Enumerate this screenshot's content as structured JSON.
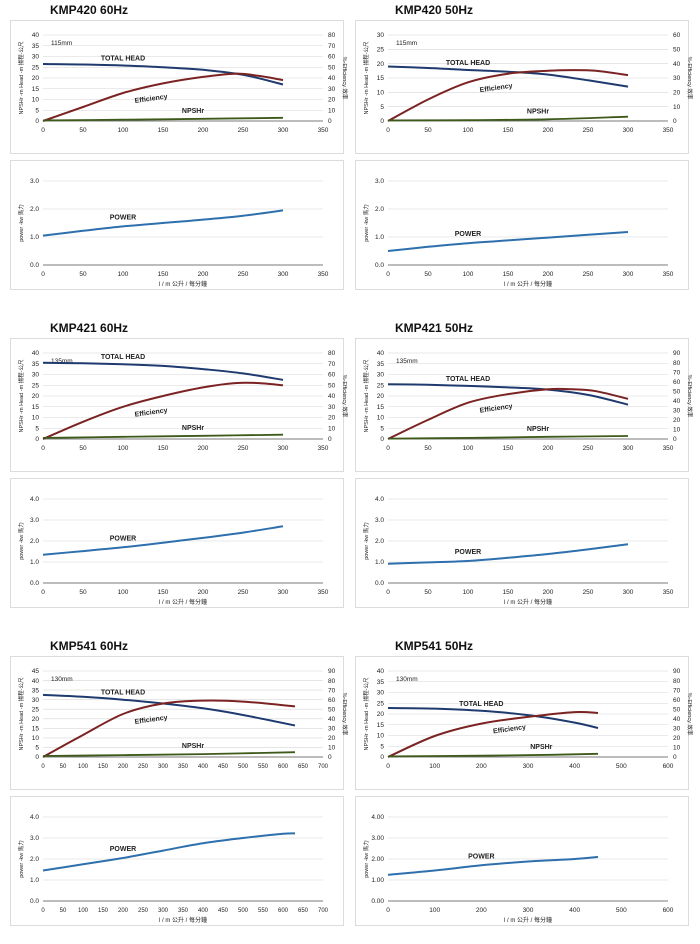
{
  "axis_text": {
    "head_ylabel": "NPSHr -m   Head -m 揚程-公尺",
    "eff_ylabel": "%-Efficiency 效率",
    "power_ylabel": "power -kw 馬力",
    "xlabel": "l / m   公升 / 每分鐘"
  },
  "colors": {
    "head": "#1f3a6e",
    "efficiency": "#7b2323",
    "npshr": "#3d5a1b",
    "power": "#2e6fad"
  },
  "charts": [
    {
      "title": "KMP420  60Hz",
      "head": {
        "ylim": [
          0,
          40
        ],
        "yticks": [
          0,
          5,
          10,
          15,
          20,
          25,
          30,
          35,
          40
        ],
        "y2lim": [
          0,
          80
        ],
        "y2ticks": [
          0,
          10,
          20,
          30,
          40,
          50,
          60,
          70,
          80
        ],
        "xlim": [
          0,
          350
        ],
        "xticks": [
          0,
          50,
          100,
          150,
          200,
          250,
          300,
          350
        ],
        "annotation": "115mm",
        "labels": {
          "head": "TOTAL HEAD",
          "eff": "Efficiency",
          "npshr": "NPSHr"
        },
        "series": {
          "head": [
            [
              0,
              26.5
            ],
            [
              50,
              26.3
            ],
            [
              100,
              25.8
            ],
            [
              150,
              25
            ],
            [
              200,
              23.8
            ],
            [
              250,
              21.5
            ],
            [
              300,
              17
            ]
          ],
          "efficiency": [
            [
              0,
              0
            ],
            [
              50,
              13
            ],
            [
              100,
              26
            ],
            [
              150,
              35
            ],
            [
              200,
              41
            ],
            [
              240,
              44
            ],
            [
              270,
              42
            ],
            [
              300,
              38
            ]
          ],
          "npshr": [
            [
              0,
              0.3
            ],
            [
              100,
              0.6
            ],
            [
              200,
              1
            ],
            [
              300,
              1.5
            ]
          ]
        }
      },
      "power": {
        "ylim": [
          0,
          3
        ],
        "yticks": [
          "0.0",
          "1.0",
          "2.0",
          "3.0"
        ],
        "xlim": [
          0,
          350
        ],
        "xticks": [
          0,
          50,
          100,
          150,
          200,
          250,
          300,
          350
        ],
        "label": "POWER",
        "series": [
          [
            0,
            1.05
          ],
          [
            50,
            1.22
          ],
          [
            100,
            1.38
          ],
          [
            150,
            1.5
          ],
          [
            200,
            1.62
          ],
          [
            250,
            1.76
          ],
          [
            300,
            1.95
          ]
        ]
      }
    },
    {
      "title": "KMP420  50Hz",
      "head": {
        "ylim": [
          0,
          30
        ],
        "yticks": [
          0,
          5,
          10,
          15,
          20,
          25,
          30
        ],
        "y2lim": [
          0,
          60
        ],
        "y2ticks": [
          0,
          10,
          20,
          30,
          40,
          50,
          60
        ],
        "xlim": [
          0,
          350
        ],
        "xticks": [
          0,
          50,
          100,
          150,
          200,
          250,
          300,
          350
        ],
        "annotation": "115mm",
        "labels": {
          "head": "TOTAL HEAD",
          "eff": "Efficiency",
          "npshr": "NPSHr"
        },
        "series": {
          "head": [
            [
              0,
              19
            ],
            [
              50,
              18.5
            ],
            [
              100,
              17.8
            ],
            [
              150,
              17.2
            ],
            [
              200,
              16.2
            ],
            [
              250,
              14.2
            ],
            [
              300,
              12
            ]
          ],
          "efficiency": [
            [
              0,
              0
            ],
            [
              50,
              15
            ],
            [
              100,
              27
            ],
            [
              150,
              33
            ],
            [
              200,
              35
            ],
            [
              230,
              35.5
            ],
            [
              260,
              35
            ],
            [
              300,
              32
            ]
          ],
          "npshr": [
            [
              0,
              0.2
            ],
            [
              100,
              0.3
            ],
            [
              200,
              0.6
            ],
            [
              300,
              1.5
            ]
          ]
        }
      },
      "power": {
        "ylim": [
          0,
          3
        ],
        "yticks": [
          "0.0",
          "1.0",
          "2.0",
          "3.0"
        ],
        "xlim": [
          0,
          350
        ],
        "xticks": [
          0,
          50,
          100,
          150,
          200,
          250,
          300,
          350
        ],
        "label": "POWER",
        "series": [
          [
            0,
            0.5
          ],
          [
            50,
            0.65
          ],
          [
            100,
            0.78
          ],
          [
            150,
            0.88
          ],
          [
            200,
            0.98
          ],
          [
            250,
            1.08
          ],
          [
            300,
            1.18
          ]
        ]
      }
    },
    {
      "title": "KMP421  60Hz",
      "head": {
        "ylim": [
          0,
          40
        ],
        "yticks": [
          0,
          5,
          10,
          15,
          20,
          25,
          30,
          35,
          40
        ],
        "y2lim": [
          0,
          80
        ],
        "y2ticks": [
          0,
          10,
          20,
          30,
          40,
          50,
          60,
          70,
          80
        ],
        "xlim": [
          0,
          350
        ],
        "xticks": [
          0,
          50,
          100,
          150,
          200,
          250,
          300,
          350
        ],
        "annotation": "135mm",
        "labels": {
          "head": "TOTAL HEAD",
          "eff": "Efficiency",
          "npshr": "NPSHr"
        },
        "series": {
          "head": [
            [
              0,
              35.5
            ],
            [
              50,
              35.2
            ],
            [
              100,
              34.8
            ],
            [
              150,
              34
            ],
            [
              200,
              32.5
            ],
            [
              250,
              30.5
            ],
            [
              300,
              27.5
            ]
          ],
          "efficiency": [
            [
              0,
              0
            ],
            [
              50,
              16
            ],
            [
              100,
              30
            ],
            [
              150,
              40
            ],
            [
              200,
              48
            ],
            [
              240,
              52
            ],
            [
              270,
              52
            ],
            [
              300,
              50
            ]
          ],
          "npshr": [
            [
              0,
              0.5
            ],
            [
              100,
              1
            ],
            [
              200,
              1.5
            ],
            [
              300,
              2
            ]
          ]
        }
      },
      "power": {
        "ylim": [
          0,
          4
        ],
        "yticks": [
          "0.0",
          "1.0",
          "2.0",
          "3.0",
          "4.0"
        ],
        "xlim": [
          0,
          350
        ],
        "xticks": [
          0,
          50,
          100,
          150,
          200,
          250,
          300,
          350
        ],
        "label": "POWER",
        "series": [
          [
            0,
            1.35
          ],
          [
            50,
            1.52
          ],
          [
            100,
            1.7
          ],
          [
            150,
            1.92
          ],
          [
            200,
            2.15
          ],
          [
            250,
            2.4
          ],
          [
            300,
            2.7
          ]
        ]
      }
    },
    {
      "title": "KMP421  50Hz",
      "head": {
        "ylim": [
          0,
          40
        ],
        "yticks": [
          0,
          5,
          10,
          15,
          20,
          25,
          30,
          35,
          40
        ],
        "y2lim": [
          0,
          90
        ],
        "y2ticks": [
          0,
          10,
          20,
          30,
          40,
          50,
          60,
          70,
          80,
          90
        ],
        "xlim": [
          0,
          350
        ],
        "xticks": [
          0,
          50,
          100,
          150,
          200,
          250,
          300,
          350
        ],
        "annotation": "135mm",
        "labels": {
          "head": "TOTAL HEAD",
          "eff": "Efficiency",
          "npshr": "NPSHr"
        },
        "series": {
          "head": [
            [
              0,
              25.5
            ],
            [
              50,
              25.2
            ],
            [
              100,
              24.7
            ],
            [
              150,
              24
            ],
            [
              200,
              23
            ],
            [
              250,
              20.5
            ],
            [
              300,
              16
            ]
          ],
          "efficiency": [
            [
              0,
              0
            ],
            [
              50,
              20
            ],
            [
              100,
              38
            ],
            [
              150,
              47
            ],
            [
              200,
              52
            ],
            [
              230,
              52
            ],
            [
              260,
              50
            ],
            [
              300,
              42
            ]
          ],
          "npshr": [
            [
              0,
              0.2
            ],
            [
              100,
              0.5
            ],
            [
              200,
              1
            ],
            [
              300,
              1.4
            ]
          ]
        }
      },
      "power": {
        "ylim": [
          0,
          4
        ],
        "yticks": [
          "0.0",
          "1.0",
          "2.0",
          "3.0",
          "4.0"
        ],
        "xlim": [
          0,
          350
        ],
        "xticks": [
          0,
          50,
          100,
          150,
          200,
          250,
          300,
          350
        ],
        "label": "POWER",
        "series": [
          [
            0,
            0.92
          ],
          [
            50,
            0.98
          ],
          [
            100,
            1.05
          ],
          [
            150,
            1.2
          ],
          [
            200,
            1.38
          ],
          [
            250,
            1.6
          ],
          [
            300,
            1.85
          ]
        ]
      }
    },
    {
      "title": "KMP541  60Hz",
      "head": {
        "ylim": [
          0,
          45
        ],
        "yticks": [
          0,
          5,
          10,
          15,
          20,
          25,
          30,
          35,
          40,
          45
        ],
        "y2lim": [
          0,
          90
        ],
        "y2ticks": [
          0,
          10,
          20,
          30,
          40,
          50,
          60,
          70,
          80,
          90
        ],
        "xlim": [
          0,
          700
        ],
        "xticks": [
          0,
          50,
          100,
          150,
          200,
          250,
          300,
          350,
          400,
          450,
          500,
          550,
          600,
          650,
          700
        ],
        "annotation": "130mm",
        "labels": {
          "head": "TOTAL HEAD",
          "eff": "Efficiency",
          "npshr": "NPSHr"
        },
        "series": {
          "head": [
            [
              0,
              32.5
            ],
            [
              100,
              31.5
            ],
            [
              200,
              30
            ],
            [
              300,
              28
            ],
            [
              400,
              25.5
            ],
            [
              500,
              22
            ],
            [
              630,
              16.5
            ]
          ],
          "efficiency": [
            [
              0,
              0
            ],
            [
              100,
              23
            ],
            [
              200,
              45
            ],
            [
              300,
              56
            ],
            [
              400,
              59
            ],
            [
              500,
              58
            ],
            [
              630,
              53
            ]
          ],
          "npshr": [
            [
              0,
              0.5
            ],
            [
              200,
              1
            ],
            [
              400,
              1.5
            ],
            [
              630,
              2.5
            ]
          ]
        }
      },
      "power": {
        "ylim": [
          0,
          4
        ],
        "yticks": [
          "0.0",
          "1.0",
          "2.0",
          "3.0",
          "4.0"
        ],
        "xlim": [
          0,
          700
        ],
        "xticks": [
          0,
          50,
          100,
          150,
          200,
          250,
          300,
          350,
          400,
          450,
          500,
          550,
          600,
          650,
          700
        ],
        "label": "POWER",
        "series": [
          [
            0,
            1.45
          ],
          [
            100,
            1.75
          ],
          [
            200,
            2.05
          ],
          [
            300,
            2.4
          ],
          [
            400,
            2.75
          ],
          [
            500,
            3.0
          ],
          [
            600,
            3.2
          ],
          [
            630,
            3.22
          ]
        ]
      }
    },
    {
      "title": "KMP541  50Hz",
      "head": {
        "ylim": [
          0,
          40
        ],
        "yticks": [
          0,
          5,
          10,
          15,
          20,
          25,
          30,
          35,
          40
        ],
        "y2lim": [
          0,
          90
        ],
        "y2ticks": [
          0,
          10,
          20,
          30,
          40,
          50,
          60,
          70,
          80,
          90
        ],
        "xlim": [
          0,
          600
        ],
        "xticks": [
          0,
          100,
          200,
          300,
          400,
          500,
          600
        ],
        "annotation": "130mm",
        "labels": {
          "head": "TOTAL HEAD",
          "eff": "Efficiency",
          "npshr": "NPSHr"
        },
        "series": {
          "head": [
            [
              0,
              22.8
            ],
            [
              100,
              22.5
            ],
            [
              200,
              21.5
            ],
            [
              300,
              19.5
            ],
            [
              400,
              16
            ],
            [
              450,
              13.5
            ]
          ],
          "efficiency": [
            [
              0,
              0
            ],
            [
              100,
              22
            ],
            [
              200,
              35
            ],
            [
              300,
              42
            ],
            [
              400,
              47
            ],
            [
              450,
              46
            ]
          ],
          "npshr": [
            [
              0,
              0.3
            ],
            [
              200,
              0.6
            ],
            [
              350,
              1
            ],
            [
              450,
              1.5
            ]
          ]
        }
      },
      "power": {
        "ylim": [
          0,
          4
        ],
        "yticks": [
          "0.00",
          "1.00",
          "2.00",
          "3.00",
          "4.00"
        ],
        "xlim": [
          0,
          600
        ],
        "xticks": [
          0,
          100,
          200,
          300,
          400,
          500,
          600
        ],
        "label": "POWER",
        "series": [
          [
            0,
            1.25
          ],
          [
            100,
            1.45
          ],
          [
            200,
            1.7
          ],
          [
            300,
            1.88
          ],
          [
            400,
            2.0
          ],
          [
            450,
            2.1
          ]
        ]
      }
    }
  ]
}
